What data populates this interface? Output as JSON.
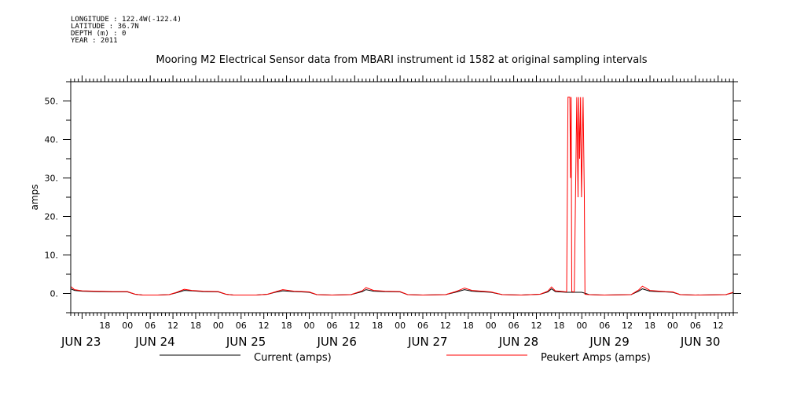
{
  "meta": {
    "longitude": "LONGITUDE : 122.4W(-122.4)",
    "latitude": "LATITUDE : 36.7N",
    "depth": "DEPTH (m) : 0",
    "year": "YEAR : 2011"
  },
  "chart_data": {
    "type": "line",
    "title": "Mooring M2 Electrical Sensor data from MBARI instrument id 1582 at original sampling intervals",
    "xlabel": "",
    "ylabel": "amps",
    "xlim": [
      "2011-06-23T09:00",
      "2011-06-30T16:00"
    ],
    "ylim": [
      -5,
      55
    ],
    "yticks": [
      0,
      10,
      20,
      30,
      40,
      50
    ],
    "ytick_labels": [
      "0.",
      "10.",
      "20.",
      "30.",
      "40.",
      "50."
    ],
    "x_hour_ticks": [
      {
        "t": "2011-06-23T18:00",
        "label": "18"
      },
      {
        "t": "2011-06-24T00:00",
        "label": "00"
      },
      {
        "t": "2011-06-24T06:00",
        "label": "06"
      },
      {
        "t": "2011-06-24T12:00",
        "label": "12"
      },
      {
        "t": "2011-06-24T18:00",
        "label": "18"
      },
      {
        "t": "2011-06-25T00:00",
        "label": "00"
      },
      {
        "t": "2011-06-25T06:00",
        "label": "06"
      },
      {
        "t": "2011-06-25T12:00",
        "label": "12"
      },
      {
        "t": "2011-06-25T18:00",
        "label": "18"
      },
      {
        "t": "2011-06-26T00:00",
        "label": "00"
      },
      {
        "t": "2011-06-26T06:00",
        "label": "06"
      },
      {
        "t": "2011-06-26T12:00",
        "label": "12"
      },
      {
        "t": "2011-06-26T18:00",
        "label": "18"
      },
      {
        "t": "2011-06-27T00:00",
        "label": "00"
      },
      {
        "t": "2011-06-27T06:00",
        "label": "06"
      },
      {
        "t": "2011-06-27T12:00",
        "label": "12"
      },
      {
        "t": "2011-06-27T18:00",
        "label": "18"
      },
      {
        "t": "2011-06-28T00:00",
        "label": "00"
      },
      {
        "t": "2011-06-28T06:00",
        "label": "06"
      },
      {
        "t": "2011-06-28T12:00",
        "label": "12"
      },
      {
        "t": "2011-06-28T18:00",
        "label": "18"
      },
      {
        "t": "2011-06-29T00:00",
        "label": "00"
      },
      {
        "t": "2011-06-29T06:00",
        "label": "06"
      },
      {
        "t": "2011-06-29T12:00",
        "label": "12"
      },
      {
        "t": "2011-06-29T18:00",
        "label": "18"
      },
      {
        "t": "2011-06-30T00:00",
        "label": "00"
      },
      {
        "t": "2011-06-30T06:00",
        "label": "06"
      },
      {
        "t": "2011-06-30T12:00",
        "label": "12"
      }
    ],
    "x_date_labels": [
      {
        "t": "2011-06-23T09:00",
        "label": "JUN 23"
      },
      {
        "t": "2011-06-24T00:00",
        "label": "JUN 24"
      },
      {
        "t": "2011-06-25T00:00",
        "label": "JUN 25"
      },
      {
        "t": "2011-06-26T00:00",
        "label": "JUN 26"
      },
      {
        "t": "2011-06-27T00:00",
        "label": "JUN 27"
      },
      {
        "t": "2011-06-28T00:00",
        "label": "JUN 28"
      },
      {
        "t": "2011-06-29T00:00",
        "label": "JUN 29"
      },
      {
        "t": "2011-06-30T00:00",
        "label": "JUN 30"
      }
    ],
    "grid": false,
    "legend": "bottom",
    "series": [
      {
        "name": "Current (amps)",
        "color": "#000000",
        "points": [
          [
            "2011-06-23T09:00",
            1.2
          ],
          [
            "2011-06-23T10:00",
            0.8
          ],
          [
            "2011-06-23T12:00",
            0.6
          ],
          [
            "2011-06-23T16:00",
            0.5
          ],
          [
            "2011-06-23T20:00",
            0.4
          ],
          [
            "2011-06-24T00:00",
            0.4
          ],
          [
            "2011-06-24T02:00",
            -0.2
          ],
          [
            "2011-06-24T04:00",
            -0.4
          ],
          [
            "2011-06-24T08:00",
            -0.4
          ],
          [
            "2011-06-24T11:00",
            -0.3
          ],
          [
            "2011-06-24T13:00",
            0.2
          ],
          [
            "2011-06-24T15:00",
            0.8
          ],
          [
            "2011-06-24T17:00",
            0.7
          ],
          [
            "2011-06-24T20:00",
            0.5
          ],
          [
            "2011-06-25T00:00",
            0.4
          ],
          [
            "2011-06-25T02:00",
            -0.2
          ],
          [
            "2011-06-25T04:00",
            -0.4
          ],
          [
            "2011-06-25T10:00",
            -0.4
          ],
          [
            "2011-06-25T13:00",
            -0.2
          ],
          [
            "2011-06-25T15:00",
            0.3
          ],
          [
            "2011-06-25T17:00",
            0.7
          ],
          [
            "2011-06-25T20:00",
            0.5
          ],
          [
            "2011-06-26T00:00",
            0.3
          ],
          [
            "2011-06-26T02:00",
            -0.3
          ],
          [
            "2011-06-26T06:00",
            -0.4
          ],
          [
            "2011-06-26T11:00",
            -0.3
          ],
          [
            "2011-06-26T14:00",
            0.5
          ],
          [
            "2011-06-26T15:00",
            1.0
          ],
          [
            "2011-06-26T17:00",
            0.6
          ],
          [
            "2011-06-26T20:00",
            0.5
          ],
          [
            "2011-06-27T00:00",
            0.4
          ],
          [
            "2011-06-27T02:00",
            -0.3
          ],
          [
            "2011-06-27T06:00",
            -0.4
          ],
          [
            "2011-06-27T12:00",
            -0.3
          ],
          [
            "2011-06-27T15:00",
            0.4
          ],
          [
            "2011-06-27T17:00",
            1.0
          ],
          [
            "2011-06-27T19:00",
            0.6
          ],
          [
            "2011-06-28T00:00",
            0.3
          ],
          [
            "2011-06-28T03:00",
            -0.3
          ],
          [
            "2011-06-28T08:00",
            -0.4
          ],
          [
            "2011-06-28T13:00",
            -0.2
          ],
          [
            "2011-06-28T15:00",
            0.4
          ],
          [
            "2011-06-28T16:00",
            1.2
          ],
          [
            "2011-06-28T17:00",
            0.5
          ],
          [
            "2011-06-28T20:00",
            0.3
          ],
          [
            "2011-06-29T00:00",
            0.3
          ],
          [
            "2011-06-29T02:00",
            -0.3
          ],
          [
            "2011-06-29T06:00",
            -0.4
          ],
          [
            "2011-06-29T13:00",
            -0.3
          ],
          [
            "2011-06-29T15:00",
            0.6
          ],
          [
            "2011-06-29T16:00",
            1.2
          ],
          [
            "2011-06-29T18:00",
            0.6
          ],
          [
            "2011-06-29T22:00",
            0.4
          ],
          [
            "2011-06-30T00:00",
            0.3
          ],
          [
            "2011-06-30T02:00",
            -0.3
          ],
          [
            "2011-06-30T06:00",
            -0.4
          ],
          [
            "2011-06-30T14:00",
            -0.3
          ],
          [
            "2011-06-30T16:00",
            0.2
          ]
        ]
      },
      {
        "name": "Peukert Amps (amps)",
        "color": "#ff0000",
        "points": [
          [
            "2011-06-23T09:00",
            1.8
          ],
          [
            "2011-06-23T10:00",
            1.0
          ],
          [
            "2011-06-23T12:00",
            0.7
          ],
          [
            "2011-06-23T16:00",
            0.6
          ],
          [
            "2011-06-23T20:00",
            0.5
          ],
          [
            "2011-06-24T00:00",
            0.5
          ],
          [
            "2011-06-24T02:00",
            -0.2
          ],
          [
            "2011-06-24T04:00",
            -0.4
          ],
          [
            "2011-06-24T08:00",
            -0.4
          ],
          [
            "2011-06-24T11:00",
            -0.3
          ],
          [
            "2011-06-24T13:00",
            0.3
          ],
          [
            "2011-06-24T15:00",
            1.1
          ],
          [
            "2011-06-24T17:00",
            0.8
          ],
          [
            "2011-06-24T20:00",
            0.6
          ],
          [
            "2011-06-25T00:00",
            0.5
          ],
          [
            "2011-06-25T02:00",
            -0.2
          ],
          [
            "2011-06-25T04:00",
            -0.4
          ],
          [
            "2011-06-25T10:00",
            -0.4
          ],
          [
            "2011-06-25T13:00",
            -0.2
          ],
          [
            "2011-06-25T15:00",
            0.4
          ],
          [
            "2011-06-25T17:00",
            1.0
          ],
          [
            "2011-06-25T20:00",
            0.6
          ],
          [
            "2011-06-26T00:00",
            0.4
          ],
          [
            "2011-06-26T02:00",
            -0.3
          ],
          [
            "2011-06-26T06:00",
            -0.4
          ],
          [
            "2011-06-26T11:00",
            -0.3
          ],
          [
            "2011-06-26T14:00",
            0.7
          ],
          [
            "2011-06-26T15:00",
            1.5
          ],
          [
            "2011-06-26T17:00",
            0.8
          ],
          [
            "2011-06-26T20:00",
            0.6
          ],
          [
            "2011-06-27T00:00",
            0.5
          ],
          [
            "2011-06-27T02:00",
            -0.3
          ],
          [
            "2011-06-27T06:00",
            -0.4
          ],
          [
            "2011-06-27T12:00",
            -0.3
          ],
          [
            "2011-06-27T15:00",
            0.6
          ],
          [
            "2011-06-27T17:00",
            1.4
          ],
          [
            "2011-06-27T19:00",
            0.8
          ],
          [
            "2011-06-28T00:00",
            0.4
          ],
          [
            "2011-06-28T03:00",
            -0.3
          ],
          [
            "2011-06-28T08:00",
            -0.4
          ],
          [
            "2011-06-28T13:00",
            -0.2
          ],
          [
            "2011-06-28T15:00",
            0.6
          ],
          [
            "2011-06-28T16:00",
            1.7
          ],
          [
            "2011-06-28T17:00",
            0.7
          ],
          [
            "2011-06-28T20:00",
            0.4
          ],
          [
            "2011-06-28T20:20",
            51.0
          ],
          [
            "2011-06-28T20:50",
            51.0
          ],
          [
            "2011-06-28T21:00",
            30.0
          ],
          [
            "2011-06-28T21:10",
            51.0
          ],
          [
            "2011-06-28T21:20",
            0.5
          ],
          [
            "2011-06-28T22:00",
            0.4
          ],
          [
            "2011-06-28T22:40",
            51.0
          ],
          [
            "2011-06-28T23:00",
            25.0
          ],
          [
            "2011-06-28T23:10",
            51.0
          ],
          [
            "2011-06-28T23:25",
            35.0
          ],
          [
            "2011-06-28T23:40",
            51.0
          ],
          [
            "2011-06-28T23:55",
            25.0
          ],
          [
            "2011-06-29T00:20",
            51.0
          ],
          [
            "2011-06-29T00:40",
            25.0
          ],
          [
            "2011-06-29T00:50",
            -0.2
          ],
          [
            "2011-06-29T02:00",
            -0.3
          ],
          [
            "2011-06-29T06:00",
            -0.4
          ],
          [
            "2011-06-29T13:00",
            -0.3
          ],
          [
            "2011-06-29T15:00",
            0.9
          ],
          [
            "2011-06-29T16:00",
            1.9
          ],
          [
            "2011-06-29T18:00",
            0.8
          ],
          [
            "2011-06-29T22:00",
            0.5
          ],
          [
            "2011-06-30T00:00",
            0.4
          ],
          [
            "2011-06-30T02:00",
            -0.3
          ],
          [
            "2011-06-30T06:00",
            -0.4
          ],
          [
            "2011-06-30T14:00",
            -0.3
          ],
          [
            "2011-06-30T16:00",
            0.3
          ]
        ]
      }
    ]
  }
}
